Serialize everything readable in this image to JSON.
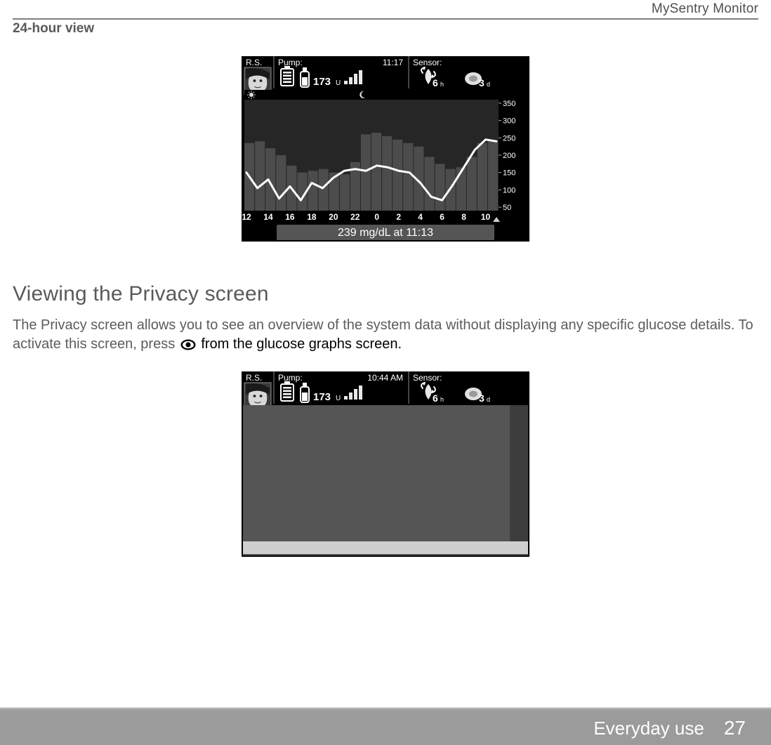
{
  "header": {
    "product": "MySentry Monitor"
  },
  "section_24h": {
    "title": "24-hour view"
  },
  "device1": {
    "top": {
      "initials": "R.S.",
      "pump_label": "Pump:",
      "time": "11:17",
      "units_value": "173",
      "units_suffix": "U",
      "sensor_label": "Sensor:",
      "sensor_hours_value": "6",
      "sensor_hours_suffix": "h",
      "sensor_days_value": "3",
      "sensor_days_suffix": "d"
    },
    "chart": {
      "type": "line_over_bar",
      "x_hours": [
        12,
        14,
        16,
        18,
        20,
        22,
        0,
        2,
        4,
        6,
        8,
        10
      ],
      "y_ticks": [
        50,
        100,
        150,
        200,
        250,
        300,
        350
      ],
      "ylim": [
        40,
        360
      ],
      "line_points": [
        {
          "x": 12,
          "y": 150
        },
        {
          "x": 13,
          "y": 105
        },
        {
          "x": 14,
          "y": 130
        },
        {
          "x": 15,
          "y": 75
        },
        {
          "x": 16,
          "y": 110
        },
        {
          "x": 17,
          "y": 70
        },
        {
          "x": 18,
          "y": 120
        },
        {
          "x": 19,
          "y": 105
        },
        {
          "x": 20,
          "y": 135
        },
        {
          "x": 21,
          "y": 155
        },
        {
          "x": 22,
          "y": 160
        },
        {
          "x": 23,
          "y": 155
        },
        {
          "x": 0,
          "y": 170
        },
        {
          "x": 1,
          "y": 165
        },
        {
          "x": 2,
          "y": 155
        },
        {
          "x": 3,
          "y": 150
        },
        {
          "x": 4,
          "y": 120
        },
        {
          "x": 5,
          "y": 80
        },
        {
          "x": 6,
          "y": 70
        },
        {
          "x": 7,
          "y": 115
        },
        {
          "x": 8,
          "y": 165
        },
        {
          "x": 9,
          "y": 215
        },
        {
          "x": 10,
          "y": 245
        },
        {
          "x": 11,
          "y": 240
        }
      ],
      "bar_heights": {
        "12": 235,
        "13": 240,
        "14": 220,
        "15": 200,
        "16": 170,
        "17": 150,
        "18": 155,
        "19": 160,
        "20": 150,
        "21": 145,
        "22": 180,
        "23": 260,
        "0": 265,
        "1": 255,
        "2": 245,
        "3": 235,
        "4": 225,
        "5": 195,
        "6": 175,
        "7": 160,
        "8": 165,
        "9": 195,
        "10": 235,
        "11": 240
      },
      "colors": {
        "frame": "#000000",
        "plot_bg": "#262626",
        "bars": "#4c4c4c",
        "line": "#ffffff",
        "tick_text": "#ffffff",
        "caption_bg": "#555555",
        "caption_text": "#ffffff"
      },
      "line_width": 3,
      "caption": "239 mg/dL at 11:13",
      "cursor_x": 11
    }
  },
  "privacy": {
    "heading": "Viewing the Privacy screen",
    "para_lead": "The Privacy screen allows you to see an overview of the system data without displaying any specific glucose details. To activate this screen, press ",
    "para_tail": " from the glucose graphs screen."
  },
  "device2": {
    "top": {
      "initials": "R.S.",
      "pump_label": "Pump:",
      "time": "10:44 AM",
      "units_value": "173",
      "units_suffix": "U",
      "sensor_label": "Sensor:",
      "sensor_hours_value": "6",
      "sensor_hours_suffix": "h",
      "sensor_days_value": "3",
      "sensor_days_suffix": "d"
    },
    "colors": {
      "frame": "#000000",
      "body": "#555555",
      "footer_strip": "#cfcfcf"
    }
  },
  "footer": {
    "label": "Everyday use",
    "page": "27"
  },
  "palette": {
    "rule": "#7e7e7e",
    "muted_text": "#5a5a5a",
    "footer_bg": "#9b9b9b",
    "footer_text": "#ffffff"
  }
}
